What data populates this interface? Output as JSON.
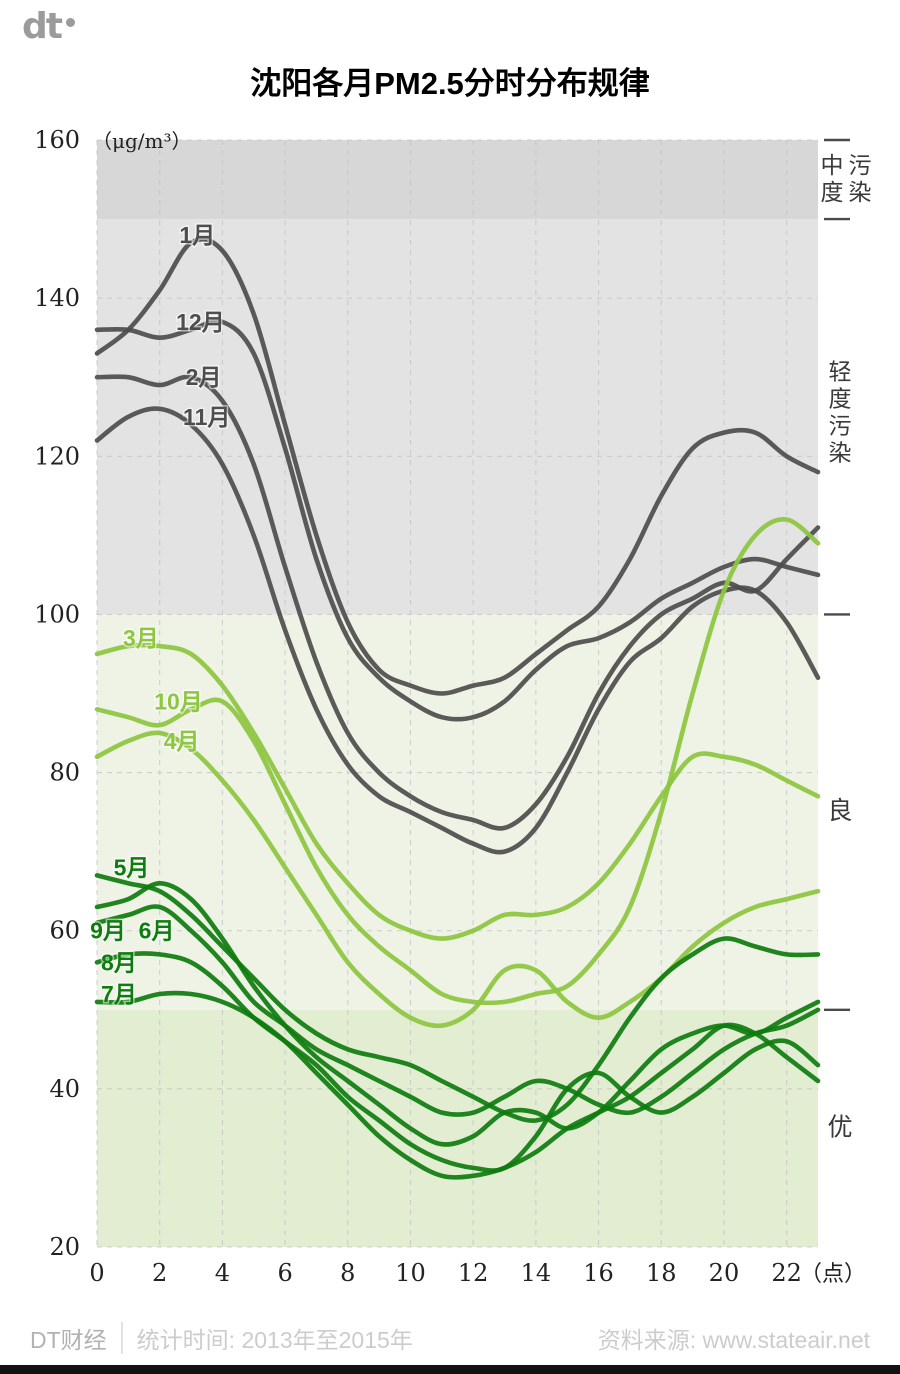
{
  "logo": {
    "text": "dt"
  },
  "title": "沈阳各月PM2.5分时分布规律",
  "footer": {
    "brand": "DT财经",
    "stat": "统计时间: 2013年至2015年",
    "source": "资料来源: www.stateair.net"
  },
  "chart_data": {
    "type": "line",
    "title": "沈阳各月PM2.5分时分布规律",
    "unit_label": "（μg/m³）",
    "x_suffix": "（点）",
    "xlim": [
      0,
      23
    ],
    "ylim": [
      20,
      160
    ],
    "grid": "dashed",
    "x_ticks": [
      0,
      2,
      4,
      6,
      8,
      10,
      12,
      14,
      16,
      18,
      20,
      22
    ],
    "y_ticks": [
      20,
      40,
      60,
      80,
      100,
      120,
      140,
      160
    ],
    "right_ticks": [
      160,
      150,
      100,
      50
    ],
    "bands": [
      {
        "label": "中度污染",
        "from": 150,
        "to": 160,
        "color": "#d7d7d7",
        "label_mode": "two-col"
      },
      {
        "label": "轻度污染",
        "from": 100,
        "to": 150,
        "color": "#e3e3e3",
        "label_mode": "one-col"
      },
      {
        "label": "良",
        "from": 50,
        "to": 100,
        "color": "#eef3e6",
        "label_mode": "single"
      },
      {
        "label": "优",
        "from": 20,
        "to": 50,
        "color": "#e3edd2",
        "label_mode": "single"
      }
    ],
    "x": [
      0,
      1,
      2,
      3,
      4,
      5,
      6,
      7,
      8,
      9,
      10,
      11,
      12,
      13,
      14,
      15,
      16,
      17,
      18,
      19,
      20,
      21,
      22,
      23
    ],
    "series": [
      {
        "name": "1月",
        "color": "#4d4d4d",
        "label_at": {
          "h": 3.2,
          "v": 148
        },
        "values": [
          133,
          136,
          141,
          147,
          146,
          138,
          124,
          110,
          99,
          93,
          91,
          90,
          91,
          92,
          95,
          98,
          101,
          107,
          115,
          121,
          123,
          123,
          120,
          118
        ]
      },
      {
        "name": "12月",
        "color": "#4d4d4d",
        "label_at": {
          "h": 3.3,
          "v": 137
        },
        "values": [
          136,
          136,
          135,
          136,
          137,
          133,
          121,
          107,
          97,
          92,
          89,
          87,
          87,
          89,
          93,
          96,
          97,
          99,
          102,
          104,
          106,
          107,
          106,
          105
        ]
      },
      {
        "name": "2月",
        "color": "#4d4d4d",
        "label_at": {
          "h": 3.4,
          "v": 130
        },
        "values": [
          130,
          130,
          129,
          130,
          127,
          119,
          106,
          94,
          85,
          80,
          77,
          75,
          74,
          73,
          76,
          82,
          90,
          96,
          100,
          102,
          104,
          103,
          107,
          111
        ]
      },
      {
        "name": "11月",
        "color": "#4d4d4d",
        "label_at": {
          "h": 3.5,
          "v": 125
        },
        "values": [
          122,
          125,
          126,
          124,
          119,
          110,
          98,
          88,
          81,
          77,
          75,
          73,
          71,
          70,
          73,
          80,
          88,
          94,
          97,
          101,
          103,
          103,
          99,
          92
        ]
      },
      {
        "name": "3月",
        "color": "#8dc63f",
        "label_at": {
          "h": 1.4,
          "v": 97
        },
        "values": [
          95,
          96,
          96,
          95,
          91,
          85,
          78,
          71,
          66,
          62,
          60,
          59,
          60,
          62,
          62,
          63,
          66,
          71,
          77,
          82,
          82,
          81,
          79,
          77
        ]
      },
      {
        "name": "10月",
        "color": "#8dc63f",
        "label_at": {
          "h": 2.6,
          "v": 89
        },
        "values": [
          88,
          87,
          86,
          88,
          89,
          84,
          76,
          68,
          62,
          58,
          55,
          52,
          51,
          51,
          52,
          53,
          57,
          63,
          75,
          90,
          103,
          110,
          112,
          109
        ]
      },
      {
        "name": "4月",
        "color": "#8dc63f",
        "label_at": {
          "h": 2.7,
          "v": 84
        },
        "values": [
          82,
          84,
          85,
          83,
          79,
          74,
          68,
          62,
          56,
          52,
          49,
          48,
          50,
          55,
          55,
          51,
          49,
          51,
          54,
          58,
          61,
          63,
          64,
          65
        ]
      },
      {
        "name": "5月",
        "color": "#0e7c0e",
        "label_at": {
          "h": 1.1,
          "v": 68
        },
        "values": [
          67,
          66,
          65,
          62,
          58,
          54,
          50,
          47,
          45,
          44,
          43,
          41,
          39,
          37,
          36,
          38,
          43,
          49,
          54,
          57,
          59,
          58,
          57,
          57
        ]
      },
      {
        "name": "6月",
        "color": "#0e7c0e",
        "label_at": {
          "h": 1.9,
          "v": 60
        },
        "values": [
          63,
          64,
          66,
          64,
          59,
          53,
          48,
          44,
          41,
          38,
          35,
          33,
          34,
          37,
          37,
          35,
          37,
          41,
          45,
          47,
          48,
          47,
          49,
          51
        ]
      },
      {
        "name": "9月",
        "color": "#0e7c0e",
        "label_at": {
          "h": 0.35,
          "v": 60
        },
        "values": [
          61,
          62,
          63,
          60,
          56,
          51,
          48,
          45,
          43,
          41,
          39,
          37,
          37,
          39,
          41,
          40,
          38,
          37,
          39,
          42,
          45,
          47,
          48,
          50
        ]
      },
      {
        "name": "8月",
        "color": "#0e7c0e",
        "label_at": {
          "h": 0.7,
          "v": 56
        },
        "values": [
          56,
          57,
          57,
          56,
          53,
          49,
          46,
          43,
          39,
          36,
          33,
          31,
          30,
          30,
          34,
          40,
          42,
          39,
          37,
          39,
          42,
          45,
          46,
          43
        ]
      },
      {
        "name": "7月",
        "color": "#0e7c0e",
        "label_at": {
          "h": 0.7,
          "v": 52
        },
        "values": [
          51,
          51,
          52,
          52,
          51,
          49,
          46,
          42,
          38,
          34,
          31,
          29,
          29,
          30,
          32,
          35,
          37,
          39,
          42,
          45,
          48,
          47,
          44,
          41
        ]
      }
    ]
  }
}
